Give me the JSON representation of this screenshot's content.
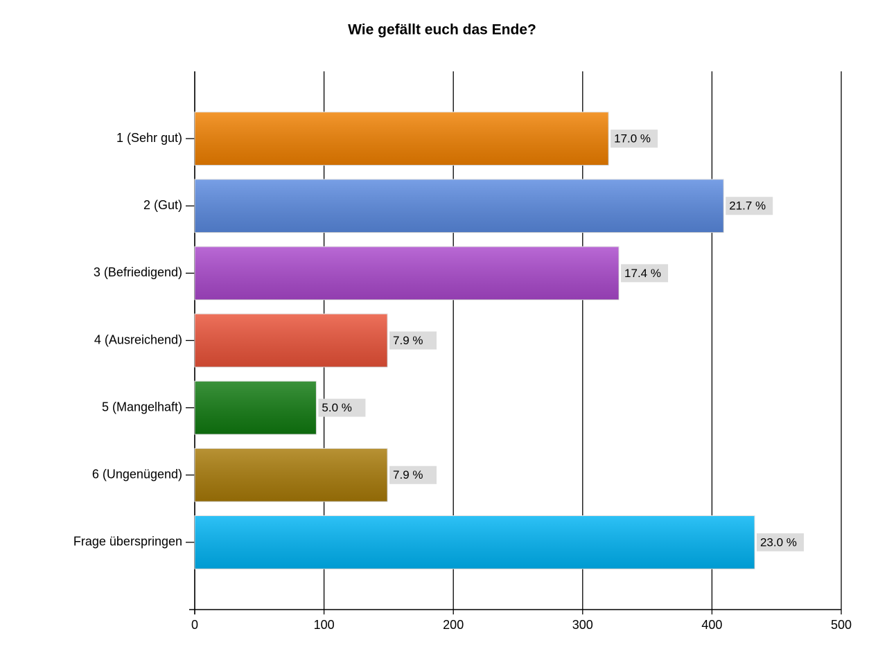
{
  "chart_data": {
    "type": "bar",
    "orientation": "horizontal",
    "title": "Wie gefällt euch das Ende?",
    "categories": [
      "1 (Sehr gut)",
      "2 (Gut)",
      "3 (Befriedigend)",
      "4 (Ausreichend)",
      "5 (Mangelhaft)",
      "6 (Ungenügend)",
      "Frage überspringen"
    ],
    "values": [
      320,
      409,
      328,
      149,
      94,
      149,
      433
    ],
    "share_labels": [
      "17.0 %",
      "21.7 %",
      "17.4 %",
      "7.9 %",
      "5.0 %",
      "7.9 %",
      "23.0 %"
    ],
    "colors": [
      "#f08000",
      "#5a8ae0",
      "#aa48cc",
      "#ea5238",
      "#107a10",
      "#a87a08",
      "#00b4f4"
    ],
    "xlim": [
      0,
      500
    ],
    "xticks": [
      0,
      100,
      200,
      300,
      400,
      500
    ],
    "grid": true
  }
}
